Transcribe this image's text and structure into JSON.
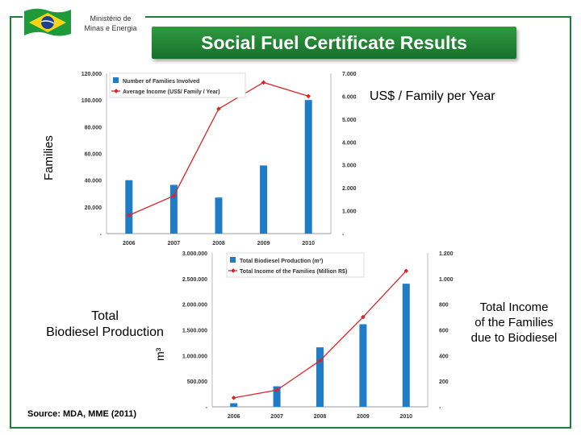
{
  "header": {
    "ministry_line1": "Ministério de",
    "ministry_line2": "Minas e Energia",
    "title": "Social Fuel Certificate Results"
  },
  "labels": {
    "families_axis": "Families",
    "income_axis": "US$ / Family per Year",
    "biodiesel_line1": "Total",
    "biodiesel_line2": "Biodiesel Production",
    "m3_axis": "m³",
    "total_income_line1": "Total Income",
    "total_income_line2": "of the Families",
    "total_income_line3": "due to Biodiesel",
    "source": "Source: MDA, MME (2011)"
  },
  "colors": {
    "frame": "#1e7f3a",
    "title_bar": "#228a36",
    "bar": "#1f7dc8",
    "line": "#d9262b"
  },
  "chart_data": [
    {
      "type": "bar",
      "combo": "bar+line",
      "categories": [
        "2006",
        "2007",
        "2008",
        "2009",
        "2010"
      ],
      "series": [
        {
          "name": "Number of Families Involved",
          "type": "bar",
          "axis": "left",
          "values": [
            40000,
            36500,
            27000,
            51000,
            100000
          ]
        },
        {
          "name": "Average Income (US$/ Family / Year)",
          "type": "line",
          "axis": "right",
          "values": [
            800,
            1650,
            5450,
            6600,
            6000
          ]
        }
      ],
      "y_left": {
        "ticks": [
          "-",
          "20.000",
          "40.000",
          "60.000",
          "80.000",
          "100.000",
          "120.000"
        ],
        "ylim": [
          0,
          120000
        ]
      },
      "y_right": {
        "ticks": [
          "-",
          "1.000",
          "2.000",
          "3.000",
          "4.000",
          "5.000",
          "6.000",
          "7.000"
        ],
        "ylim": [
          0,
          7000
        ]
      },
      "legend": "top-left",
      "grid": false
    },
    {
      "type": "bar",
      "combo": "bar+line",
      "categories": [
        "2006",
        "2007",
        "2008",
        "2009",
        "2010"
      ],
      "series": [
        {
          "name": "Total Biodiesel Production (m³)",
          "type": "bar",
          "axis": "left",
          "values": [
            70000,
            400000,
            1160000,
            1610000,
            2400000
          ]
        },
        {
          "name": "Total Income of the Families (Million R$)",
          "type": "line",
          "axis": "right",
          "values": [
            70,
            130,
            360,
            700,
            1060
          ]
        }
      ],
      "y_left": {
        "ticks": [
          "-",
          "500.000",
          "1.000.000",
          "1.500.000",
          "2.000.000",
          "2.500.000",
          "3.000.000"
        ],
        "ylim": [
          0,
          3000000
        ]
      },
      "y_right": {
        "ticks": [
          "-",
          "200",
          "400",
          "600",
          "800",
          "1.000",
          "1.200"
        ],
        "ylim": [
          0,
          1200
        ]
      },
      "legend": "top-left",
      "grid": false
    }
  ]
}
